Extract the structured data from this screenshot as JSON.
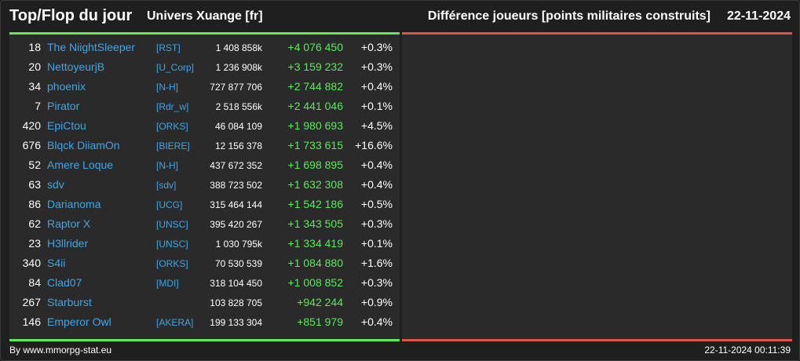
{
  "header": {
    "title": "Top/Flop du jour",
    "universe": "Univers Xuange [fr]",
    "subtitle": "Différence joueurs [points militaires construits]",
    "date": "22-11-2024"
  },
  "colors": {
    "positive_bar": "#5bea5b",
    "negative_bar": "#e0524a",
    "name_link": "#3fa6e8",
    "gain": "#5bea5b"
  },
  "top_rows": [
    {
      "rank": "18",
      "name": "The NiightSleeper",
      "alliance": "[RST]",
      "total": "1 408 858k",
      "diff": "+4 076 450",
      "pct": "+0.3%"
    },
    {
      "rank": "20",
      "name": "NettoyeurjB",
      "alliance": "[U_Corp]",
      "total": "1 236 908k",
      "diff": "+3 159 232",
      "pct": "+0.3%"
    },
    {
      "rank": "34",
      "name": "phoenix",
      "alliance": "[N-H]",
      "total": "727 877 706",
      "diff": "+2 744 882",
      "pct": "+0.4%"
    },
    {
      "rank": "7",
      "name": "Pirator",
      "alliance": "[Rdr_w]",
      "total": "2 518 556k",
      "diff": "+2 441 046",
      "pct": "+0.1%"
    },
    {
      "rank": "420",
      "name": "EpiCtou",
      "alliance": "[ORKS]",
      "total": "46 084 109",
      "diff": "+1 980 693",
      "pct": "+4.5%"
    },
    {
      "rank": "676",
      "name": "Blqck DiiamOn",
      "alliance": "[BIERE]",
      "total": "12 156 378",
      "diff": "+1 733 615",
      "pct": "+16.6%"
    },
    {
      "rank": "52",
      "name": "Amere Loque",
      "alliance": "[N-H]",
      "total": "437 672 352",
      "diff": "+1 698 895",
      "pct": "+0.4%"
    },
    {
      "rank": "63",
      "name": "sdv",
      "alliance": "[sdv]",
      "total": "388 723 502",
      "diff": "+1 632 308",
      "pct": "+0.4%"
    },
    {
      "rank": "86",
      "name": "Darianoma",
      "alliance": "[UCG]",
      "total": "315 464 144",
      "diff": "+1 542 186",
      "pct": "+0.5%"
    },
    {
      "rank": "62",
      "name": "Raptor X",
      "alliance": "[UNSC]",
      "total": "395 420 267",
      "diff": "+1 343 505",
      "pct": "+0.3%"
    },
    {
      "rank": "23",
      "name": "H3llrider",
      "alliance": "[UNSC]",
      "total": "1 030 795k",
      "diff": "+1 334 419",
      "pct": "+0.1%"
    },
    {
      "rank": "340",
      "name": "S4ii",
      "alliance": "[ORKS]",
      "total": "70 530 539",
      "diff": "+1 084 880",
      "pct": "+1.6%"
    },
    {
      "rank": "84",
      "name": "Clad07",
      "alliance": "[MDI]",
      "total": "318 104 450",
      "diff": "+1 008 852",
      "pct": "+0.3%"
    },
    {
      "rank": "267",
      "name": "Starburst",
      "alliance": "",
      "total": "103 828 705",
      "diff": "+942 244",
      "pct": "+0.9%"
    },
    {
      "rank": "146",
      "name": "Emperor Owl",
      "alliance": "[AKERA]",
      "total": "199 133 304",
      "diff": "+851 979",
      "pct": "+0.4%"
    }
  ],
  "footer": {
    "credit": "By www.mmorpg-stat.eu",
    "timestamp": "22-11-2024 00:11:39"
  }
}
